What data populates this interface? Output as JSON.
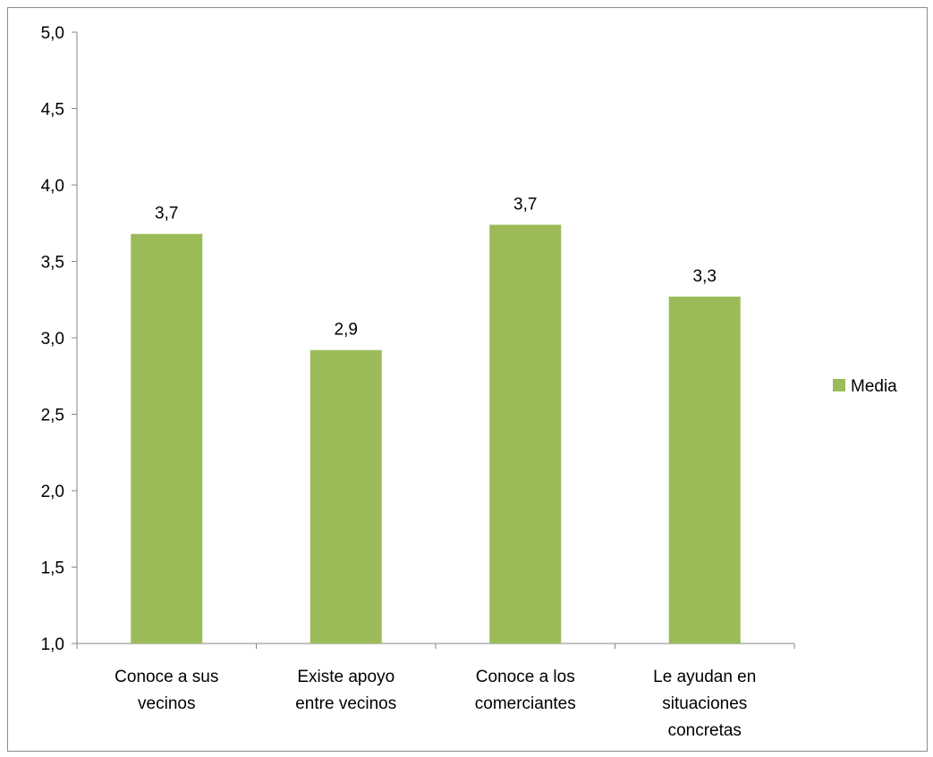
{
  "chart_data": {
    "type": "bar",
    "categories": [
      [
        "Conoce a sus",
        "vecinos"
      ],
      [
        "Existe apoyo",
        "entre vecinos"
      ],
      [
        "Conoce a los",
        "comerciantes"
      ],
      [
        "Le ayudan en",
        "situaciones",
        "concretas"
      ]
    ],
    "series": [
      {
        "name": "Media",
        "values": [
          3.68,
          2.92,
          3.74,
          3.27
        ],
        "data_labels": [
          "3,7",
          "2,9",
          "3,7",
          "3,3"
        ],
        "color": "#9bbb59"
      }
    ],
    "y_ticks": [
      "1,0",
      "1,5",
      "2,0",
      "2,5",
      "3,0",
      "3,5",
      "4,0",
      "4,5",
      "5,0"
    ],
    "ylim": [
      1.0,
      5.0
    ],
    "grid": false,
    "legend_position": "right",
    "title": "",
    "xlabel": "",
    "ylabel": ""
  }
}
